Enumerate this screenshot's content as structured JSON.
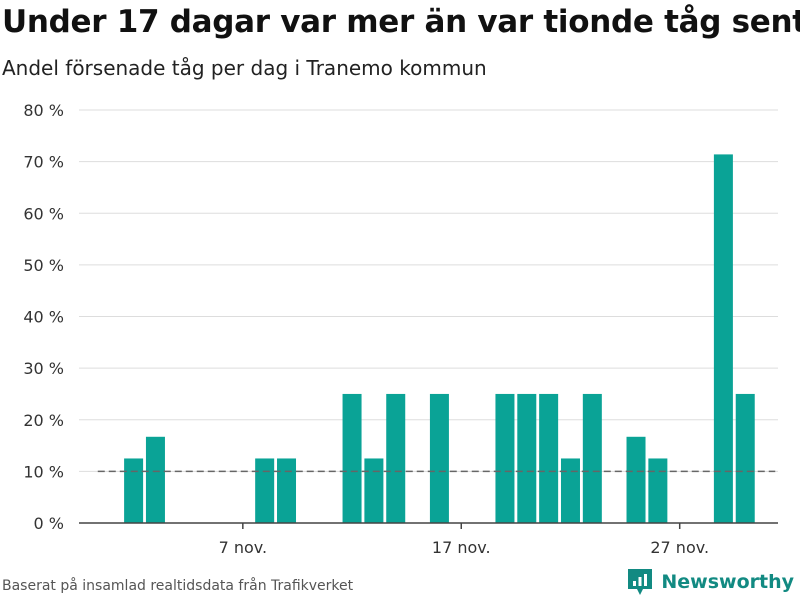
{
  "title": "Under 17 dagar var mer än var tionde tåg sent",
  "subtitle": "Andel försenade tåg per dag i Tranemo kommun",
  "footer": {
    "source": "Baserat på insamlad realtidsdata från Trafikverket",
    "brand": "Newsworthy"
  },
  "colors": {
    "bar": "#0aa396",
    "grid": "#dddddd",
    "axis": "#444444",
    "reference": "#666666",
    "brand": "#128a82"
  },
  "chart_data": {
    "type": "bar",
    "title": "Under 17 dagar var mer än var tionde tåg sent",
    "subtitle": "Andel försenade tåg per dag i Tranemo kommun",
    "xlabel": "",
    "ylabel": "",
    "ylim": [
      0,
      80
    ],
    "yticks": [
      0,
      10,
      20,
      30,
      40,
      50,
      60,
      70,
      80
    ],
    "ytick_labels": [
      "0 %",
      "10 %",
      "20 %",
      "30 %",
      "40 %",
      "50 %",
      "60 %",
      "70 %",
      "80 %"
    ],
    "x_range_days": [
      -0.5,
      31.5
    ],
    "xticks": [
      {
        "day": 7,
        "label": "7 nov."
      },
      {
        "day": 17,
        "label": "17 nov."
      },
      {
        "day": 27,
        "label": "27 nov."
      }
    ],
    "days": [
      1,
      2,
      3,
      4,
      5,
      6,
      7,
      8,
      9,
      10,
      11,
      12,
      13,
      14,
      15,
      16,
      17,
      18,
      19,
      20,
      21,
      22,
      23,
      24,
      25,
      26,
      27,
      28,
      29,
      30
    ],
    "values": [
      0,
      12.5,
      16.7,
      0,
      0,
      0,
      0,
      12.5,
      12.5,
      0,
      0,
      25,
      12.5,
      25,
      0,
      25,
      0,
      0,
      25,
      25,
      25,
      12.5,
      25,
      0,
      16.7,
      12.5,
      0,
      0,
      71.4,
      25
    ],
    "reference_line": {
      "value": 10,
      "style": "dashed"
    },
    "grid": true
  }
}
